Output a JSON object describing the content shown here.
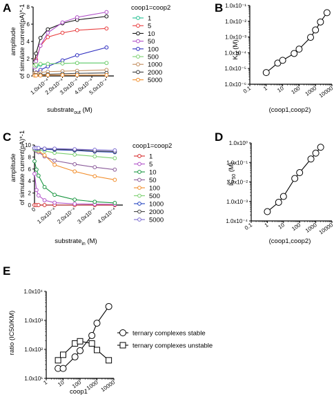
{
  "panels": {
    "A": {
      "letter": "A",
      "ylabel_line1": "amplitude",
      "ylabel_line2": "of simulate current(pA)*-1",
      "xlabel_main": "substrate",
      "xlabel_sub": "out",
      "xlabel_unit": " (M)"
    },
    "B": {
      "letter": "B",
      "ylabel_main": "K",
      "ylabel_sub": "M",
      "ylabel_unit": " (M)",
      "xlabel": "(coop1,coop2)"
    },
    "C": {
      "letter": "C",
      "ylabel_line1": "amplitude",
      "ylabel_line2": "of simulate current(pA)*-1",
      "xlabel_main": "substrate",
      "xlabel_sub": "in",
      "xlabel_unit": " (M)"
    },
    "D": {
      "letter": "D",
      "ylabel_main": "IC",
      "ylabel_sub": "50",
      "ylabel_unit": " (M)",
      "xlabel": "(coop1,coop2)"
    },
    "E": {
      "letter": "E",
      "ylabel": "ratio (IC50/KM)",
      "xlabel": "coop1"
    }
  },
  "chart_data": [
    {
      "panel": "A",
      "type": "line",
      "xlabel": "substrate_out (M)",
      "ylabel": "amplitude of simulate current(pA)*-1",
      "xlim": [
        0,
        0.00055
      ],
      "ylim": [
        0,
        8
      ],
      "x_ticks": [
        0.0001,
        0.0002,
        0.0003,
        0.0004,
        0.0005
      ],
      "x_tick_labels": [
        "1.0x10⁻⁴",
        "2.0x10⁻⁴",
        "3.0x10⁻⁴",
        "4.0x10⁻⁴",
        "5.0x10⁻⁴"
      ],
      "y_ticks": [
        0,
        2,
        4,
        6,
        8
      ],
      "y_tick_labels": [
        "0",
        "2",
        "4",
        "6",
        "8"
      ],
      "legend_title": "coop1=coop2",
      "legend_position": "right",
      "x": [
        1e-05,
        2e-05,
        5e-05,
        0.0001,
        0.0002,
        0.0003,
        0.0005
      ],
      "series": [
        {
          "name": "1",
          "color": "#1fbf8f",
          "values": [
            1.0,
            1.1,
            1.3,
            1.4,
            1.45,
            1.5,
            1.5
          ]
        },
        {
          "name": "5",
          "color": "#e8393a",
          "values": [
            1.2,
            1.9,
            3.5,
            4.5,
            5.0,
            5.3,
            5.5
          ]
        },
        {
          "name": "10",
          "color": "#111111",
          "values": [
            1.6,
            2.6,
            4.4,
            5.4,
            6.1,
            6.5,
            6.9
          ]
        },
        {
          "name": "50",
          "color": "#b04fc8",
          "values": [
            1.0,
            1.7,
            3.5,
            5.0,
            6.2,
            6.8,
            7.4
          ]
        },
        {
          "name": "100",
          "color": "#2b2bbf",
          "values": [
            0.2,
            0.4,
            0.7,
            1.1,
            1.8,
            2.4,
            3.3
          ]
        },
        {
          "name": "500",
          "color": "#7ad06e",
          "values": [
            1.2,
            1.3,
            1.4,
            1.4,
            1.45,
            1.5,
            1.5
          ]
        },
        {
          "name": "1000",
          "color": "#c08a5a",
          "values": [
            0.3,
            0.35,
            0.4,
            0.5,
            0.55,
            0.6,
            0.7
          ]
        },
        {
          "name": "2000",
          "color": "#3a3a3a",
          "values": [
            0.1,
            0.1,
            0.15,
            0.2,
            0.25,
            0.3,
            0.35
          ]
        },
        {
          "name": "5000",
          "color": "#f28c28",
          "values": [
            0.05,
            0.05,
            0.05,
            0.1,
            0.1,
            0.1,
            0.1
          ]
        }
      ]
    },
    {
      "panel": "B",
      "type": "line",
      "xscale": "log",
      "yscale": "log",
      "xlabel": "(coop1,coop2)",
      "ylabel": "KM (M)",
      "xlim": [
        0.1,
        10000
      ],
      "ylim": [
        1e-06,
        0.1
      ],
      "x_ticks": [
        0.1,
        1,
        10,
        100,
        1000,
        10000
      ],
      "x_tick_labels": [
        "0.1",
        "1",
        "10",
        "100",
        "1000",
        "10000"
      ],
      "y_ticks": [
        1e-06,
        1e-05,
        0.0001,
        0.001,
        0.01,
        0.1
      ],
      "y_tick_labels": [
        "1.0x10⁻⁶",
        "1.0x10⁻⁵",
        "1.0x10⁻⁴",
        "1.0x10⁻³",
        "1.0x10⁻²",
        "1.0x10⁻¹"
      ],
      "x": [
        1,
        5,
        10,
        50,
        100,
        500,
        1000,
        2000,
        5000
      ],
      "values": [
        5.5e-06,
        2.2e-05,
        3.3e-05,
        9e-05,
        0.00017,
        0.00095,
        0.0028,
        0.009,
        0.035
      ]
    },
    {
      "panel": "C",
      "type": "line",
      "xlabel": "substrate_in (M)",
      "ylabel": "amplitude of simulate current(pA)*-1",
      "xlim": [
        0,
        0.00044
      ],
      "ylim": [
        0,
        10
      ],
      "x_ticks": [
        0,
        0.0001,
        0.0002,
        0.0003,
        0.0004
      ],
      "x_tick_labels": [
        "0",
        "1.0x10⁻⁴",
        "2.0x10⁻⁴",
        "3.0x10⁻⁴",
        "4.0x10⁻⁴"
      ],
      "y_ticks": [
        0,
        2,
        4,
        6,
        8,
        10
      ],
      "y_tick_labels": [
        "0",
        "2",
        "4",
        "6",
        "8",
        "10"
      ],
      "legend_title": "coop1=coop2",
      "legend_position": "right",
      "x": [
        0,
        1e-05,
        2e-05,
        5e-05,
        0.0001,
        0.0002,
        0.0003,
        0.0004
      ],
      "series": [
        {
          "name": "1",
          "color": "#d62728",
          "values": [
            0.0,
            0.0,
            0.0,
            0.0,
            0.0,
            0.0,
            0.0,
            0.0
          ]
        },
        {
          "name": "5",
          "color": "#b04fc8",
          "values": [
            5.2,
            2.5,
            1.6,
            0.8,
            0.4,
            0.2,
            0.15,
            0.1
          ]
        },
        {
          "name": "10",
          "color": "#1a9641",
          "values": [
            7.3,
            5.9,
            4.9,
            3.0,
            1.7,
            0.9,
            0.55,
            0.35
          ]
        },
        {
          "name": "50",
          "color": "#8a5a9a",
          "values": [
            9.2,
            9.0,
            8.8,
            8.1,
            7.4,
            6.8,
            6.3,
            5.9
          ]
        },
        {
          "name": "100",
          "color": "#f28c28",
          "values": [
            9.3,
            9.2,
            9.0,
            8.3,
            6.7,
            5.6,
            4.8,
            4.2
          ]
        },
        {
          "name": "500",
          "color": "#7ad06e",
          "values": [
            9.3,
            9.2,
            9.2,
            9.0,
            8.7,
            8.4,
            8.1,
            7.8
          ]
        },
        {
          "name": "1000",
          "color": "#1f3fbf",
          "values": [
            9.5,
            9.4,
            9.4,
            9.3,
            9.2,
            9.1,
            8.9,
            8.8
          ]
        },
        {
          "name": "2000",
          "color": "#444444",
          "values": [
            9.5,
            9.5,
            9.4,
            9.4,
            9.3,
            9.2,
            9.0,
            8.9
          ]
        },
        {
          "name": "5000",
          "color": "#7a6ad0",
          "values": [
            9.5,
            9.5,
            9.5,
            9.4,
            9.4,
            9.3,
            9.2,
            9.1
          ]
        }
      ]
    },
    {
      "panel": "D",
      "type": "line",
      "xscale": "log",
      "yscale": "log",
      "xlabel": "(coop1,coop2)",
      "ylabel": "IC50 (M)",
      "xlim": [
        0.1,
        10000
      ],
      "ylim": [
        0.0001,
        1
      ],
      "x_ticks": [
        0.1,
        1,
        10,
        100,
        1000,
        10000
      ],
      "x_tick_labels": [
        "0.1",
        "1",
        "10",
        "100",
        "1000",
        "10000"
      ],
      "y_ticks": [
        0.0001,
        0.001,
        0.01,
        0.1,
        1
      ],
      "y_tick_labels": [
        "1.0x10⁻⁴",
        "1.0x10⁻³",
        "1.0x10⁻²",
        "1.0x10⁻¹",
        "1.0x10⁰"
      ],
      "x": [
        1,
        5,
        10,
        50,
        100,
        500,
        1000,
        2000
      ],
      "values": [
        0.0003,
        0.0009,
        0.0018,
        0.015,
        0.03,
        0.15,
        0.3,
        0.6
      ]
    },
    {
      "panel": "E",
      "type": "line",
      "xscale": "log",
      "yscale": "log",
      "xlabel": "coop1",
      "ylabel": "ratio (IC50/KM)",
      "xlim": [
        1,
        10000
      ],
      "ylim": [
        10,
        10000
      ],
      "x_ticks": [
        1,
        10,
        100,
        1000,
        10000
      ],
      "x_tick_labels": [
        "1",
        "10",
        "100",
        "1000",
        "10000"
      ],
      "y_ticks": [
        10,
        100,
        1000,
        10000
      ],
      "y_tick_labels": [
        "1.0x10¹",
        "1.0x10²",
        "1.0x10³",
        "1.0x10⁴"
      ],
      "legend_position": "right",
      "series": [
        {
          "name": "ternary complexes stable",
          "marker": "circle",
          "x": [
            5,
            10,
            50,
            100,
            500,
            1000,
            5000
          ],
          "values": [
            22,
            22,
            55,
            90,
            300,
            800,
            3000
          ]
        },
        {
          "name": "ternary complexes unstable",
          "marker": "square",
          "x": [
            5,
            10,
            50,
            100,
            500,
            1000,
            5000
          ],
          "values": [
            42,
            65,
            160,
            190,
            160,
            95,
            42
          ]
        }
      ]
    }
  ]
}
